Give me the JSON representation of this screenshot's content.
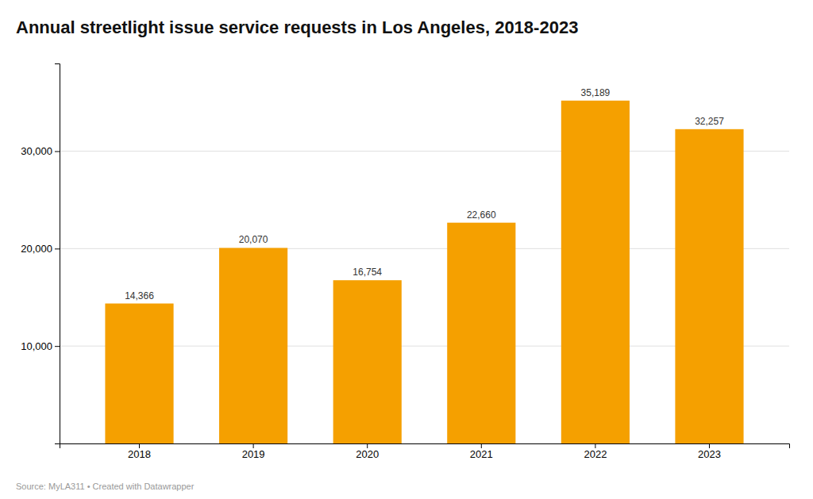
{
  "chart_data": {
    "type": "bar",
    "title": "Annual streetlight issue service requests in Los Angeles, 2018-2023",
    "categories": [
      "2018",
      "2019",
      "2020",
      "2021",
      "2022",
      "2023"
    ],
    "values": [
      14366,
      20070,
      16754,
      22660,
      35189,
      32257
    ],
    "value_labels": [
      "14,366",
      "20,070",
      "16,754",
      "22,660",
      "35,189",
      "32,257"
    ],
    "data_labels": true,
    "color": "#F5A000",
    "ylim": [
      0,
      39000
    ],
    "yticks": [
      {
        "value": 10000,
        "label": "10,000"
      },
      {
        "value": 20000,
        "label": "20,000"
      },
      {
        "value": 30000,
        "label": "30,000"
      }
    ],
    "grid": true,
    "annotations": [
      "Source: MyLA311 • Created with Datawrapper"
    ]
  }
}
